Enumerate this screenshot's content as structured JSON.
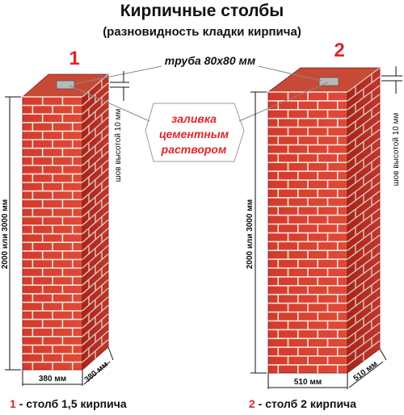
{
  "title": "Кирпичные столбы",
  "subtitle": "(разновидность кладки кирпича)",
  "pillar1": {
    "number": "1",
    "height_label": "2000 или 3000 мм",
    "seam_label": "шов высотой 10 мм",
    "width_label": "380 мм",
    "depth_label": "380 мм",
    "caption_number": "1",
    "caption_text": " - столб 1,5 кирпича"
  },
  "pillar2": {
    "number": "2",
    "height_label": "2000 или 3000 мм",
    "seam_label": "шов высотой 10 мм",
    "width_label": "510 мм",
    "depth_label": "510 мм",
    "caption_number": "2",
    "caption_text": " - столб 2 кирпича"
  },
  "pipe_label": "труба 80х80 мм",
  "mortar_label": [
    "заливка",
    "цементным",
    "раствором"
  ],
  "colors": {
    "accent_red": "#e0242a",
    "brick_front": "#d8362a",
    "brick_side": "#b62418",
    "brick_top": "#c74a36",
    "mortar": "#e8ddd8",
    "text": "#111111"
  }
}
